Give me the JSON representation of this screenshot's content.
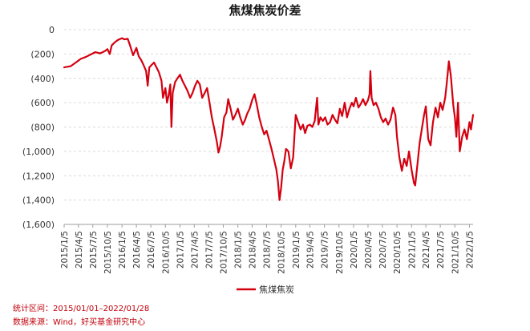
{
  "chart_data": {
    "type": "line",
    "title": "焦煤焦炭价差",
    "xlabel": "",
    "ylabel": "",
    "ylim": [
      -1600,
      0
    ],
    "yticks": [
      0,
      -200,
      -400,
      -600,
      -800,
      -1000,
      -1200,
      -1400,
      -1600
    ],
    "ytick_labels": [
      "0",
      "(200)",
      "(400)",
      "(600)",
      "(800)",
      "(1,000)",
      "(1,200)",
      "(1,400)",
      "(1,600)"
    ],
    "xtick_labels": [
      "2015/1/5",
      "2015/4/5",
      "2015/7/5",
      "2015/10/5",
      "2016/1/5",
      "2016/4/5",
      "2016/7/5",
      "2016/10/5",
      "2017/1/5",
      "2017/4/5",
      "2017/7/5",
      "2017/10/5",
      "2018/1/5",
      "2018/4/5",
      "2018/7/5",
      "2018/10/5",
      "2019/1/5",
      "2019/4/5",
      "2019/7/5",
      "2019/10/5",
      "2020/1/5",
      "2020/4/5",
      "2020/7/5",
      "2020/10/5",
      "2021/1/5",
      "2021/4/5",
      "2021/7/5",
      "2021/10/5",
      "2022/1/5"
    ],
    "grid": "horizontal-dashed",
    "legend": "bottom-center",
    "series": [
      {
        "name": "焦煤焦炭",
        "color": "#d40010",
        "points": [
          [
            "2015/01/05",
            -310
          ],
          [
            "2015/02/15",
            -300
          ],
          [
            "2015/03/20",
            -270
          ],
          [
            "2015/04/20",
            -240
          ],
          [
            "2015/05/20",
            -225
          ],
          [
            "2015/06/20",
            -205
          ],
          [
            "2015/07/20",
            -185
          ],
          [
            "2015/08/20",
            -195
          ],
          [
            "2015/09/20",
            -175
          ],
          [
            "2015/10/05",
            -160
          ],
          [
            "2015/10/20",
            -200
          ],
          [
            "2015/11/01",
            -130
          ],
          [
            "2015/11/20",
            -105
          ],
          [
            "2015/12/10",
            -85
          ],
          [
            "2016/01/05",
            -70
          ],
          [
            "2016/01/20",
            -80
          ],
          [
            "2016/02/10",
            -75
          ],
          [
            "2016/02/25",
            -130
          ],
          [
            "2016/03/15",
            -210
          ],
          [
            "2016/04/05",
            -150
          ],
          [
            "2016/04/20",
            -220
          ],
          [
            "2016/05/05",
            -250
          ],
          [
            "2016/05/20",
            -290
          ],
          [
            "2016/06/05",
            -340
          ],
          [
            "2016/06/15",
            -460
          ],
          [
            "2016/06/25",
            -310
          ],
          [
            "2016/07/10",
            -290
          ],
          [
            "2016/07/25",
            -270
          ],
          [
            "2016/08/10",
            -310
          ],
          [
            "2016/08/25",
            -350
          ],
          [
            "2016/09/10",
            -420
          ],
          [
            "2016/09/20",
            -560
          ],
          [
            "2016/10/05",
            -480
          ],
          [
            "2016/10/15",
            -600
          ],
          [
            "2016/10/25",
            -540
          ],
          [
            "2016/11/05",
            -450
          ],
          [
            "2016/11/12",
            -800
          ],
          [
            "2016/11/20",
            -520
          ],
          [
            "2016/12/05",
            -430
          ],
          [
            "2016/12/20",
            -400
          ],
          [
            "2017/01/05",
            -370
          ],
          [
            "2017/01/20",
            -420
          ],
          [
            "2017/02/05",
            -460
          ],
          [
            "2017/02/20",
            -500
          ],
          [
            "2017/03/10",
            -560
          ],
          [
            "2017/03/25",
            -520
          ],
          [
            "2017/04/10",
            -460
          ],
          [
            "2017/04/25",
            -420
          ],
          [
            "2017/05/10",
            -450
          ],
          [
            "2017/05/25",
            -560
          ],
          [
            "2017/06/10",
            -520
          ],
          [
            "2017/06/25",
            -480
          ],
          [
            "2017/07/10",
            -600
          ],
          [
            "2017/07/25",
            -720
          ],
          [
            "2017/08/10",
            -820
          ],
          [
            "2017/08/25",
            -920
          ],
          [
            "2017/09/05",
            -1010
          ],
          [
            "2017/09/15",
            -960
          ],
          [
            "2017/09/25",
            -880
          ],
          [
            "2017/10/10",
            -720
          ],
          [
            "2017/10/25",
            -680
          ],
          [
            "2017/11/05",
            -570
          ],
          [
            "2017/11/20",
            -650
          ],
          [
            "2017/12/05",
            -740
          ],
          [
            "2017/12/20",
            -700
          ],
          [
            "2018/01/05",
            -650
          ],
          [
            "2018/01/20",
            -720
          ],
          [
            "2018/02/05",
            -780
          ],
          [
            "2018/02/20",
            -740
          ],
          [
            "2018/03/05",
            -690
          ],
          [
            "2018/03/20",
            -650
          ],
          [
            "2018/04/05",
            -580
          ],
          [
            "2018/04/20",
            -530
          ],
          [
            "2018/05/05",
            -620
          ],
          [
            "2018/05/20",
            -720
          ],
          [
            "2018/06/05",
            -800
          ],
          [
            "2018/06/20",
            -860
          ],
          [
            "2018/07/05",
            -830
          ],
          [
            "2018/07/20",
            -900
          ],
          [
            "2018/08/05",
            -980
          ],
          [
            "2018/08/20",
            -1060
          ],
          [
            "2018/09/05",
            -1150
          ],
          [
            "2018/09/15",
            -1250
          ],
          [
            "2018/09/25",
            -1400
          ],
          [
            "2018/10/05",
            -1300
          ],
          [
            "2018/10/15",
            -1150
          ],
          [
            "2018/10/25",
            -1080
          ],
          [
            "2018/11/05",
            -980
          ],
          [
            "2018/11/20",
            -1000
          ],
          [
            "2018/12/05",
            -1140
          ],
          [
            "2018/12/20",
            -1050
          ],
          [
            "2019/01/05",
            -700
          ],
          [
            "2019/01/20",
            -760
          ],
          [
            "2019/02/05",
            -820
          ],
          [
            "2019/02/20",
            -780
          ],
          [
            "2019/03/05",
            -850
          ],
          [
            "2019/03/20",
            -790
          ],
          [
            "2019/04/05",
            -780
          ],
          [
            "2019/04/20",
            -800
          ],
          [
            "2019/05/05",
            -750
          ],
          [
            "2019/05/20",
            -560
          ],
          [
            "2019/05/28",
            -780
          ],
          [
            "2019/06/10",
            -720
          ],
          [
            "2019/06/25",
            -750
          ],
          [
            "2019/07/10",
            -720
          ],
          [
            "2019/07/25",
            -780
          ],
          [
            "2019/08/10",
            -760
          ],
          [
            "2019/08/25",
            -700
          ],
          [
            "2019/09/10",
            -740
          ],
          [
            "2019/09/25",
            -770
          ],
          [
            "2019/10/10",
            -650
          ],
          [
            "2019/10/25",
            -710
          ],
          [
            "2019/11/10",
            -600
          ],
          [
            "2019/11/25",
            -720
          ],
          [
            "2019/12/10",
            -650
          ],
          [
            "2019/12/25",
            -600
          ],
          [
            "2020/01/05",
            -630
          ],
          [
            "2020/01/20",
            -560
          ],
          [
            "2020/02/05",
            -640
          ],
          [
            "2020/02/20",
            -610
          ],
          [
            "2020/03/05",
            -570
          ],
          [
            "2020/03/20",
            -620
          ],
          [
            "2020/04/05",
            -580
          ],
          [
            "2020/04/15",
            -530
          ],
          [
            "2020/04/20",
            -340
          ],
          [
            "2020/04/28",
            -560
          ],
          [
            "2020/05/10",
            -620
          ],
          [
            "2020/05/25",
            -600
          ],
          [
            "2020/06/10",
            -650
          ],
          [
            "2020/06/25",
            -720
          ],
          [
            "2020/07/10",
            -760
          ],
          [
            "2020/07/25",
            -730
          ],
          [
            "2020/08/10",
            -780
          ],
          [
            "2020/08/25",
            -740
          ],
          [
            "2020/09/10",
            -640
          ],
          [
            "2020/09/25",
            -700
          ],
          [
            "2020/10/05",
            -880
          ],
          [
            "2020/10/20",
            -1050
          ],
          [
            "2020/11/05",
            -1160
          ],
          [
            "2020/11/20",
            -1060
          ],
          [
            "2020/12/05",
            -1120
          ],
          [
            "2020/12/20",
            -1000
          ],
          [
            "2021/01/05",
            -1150
          ],
          [
            "2021/01/20",
            -1260
          ],
          [
            "2021/01/28",
            -1280
          ],
          [
            "2021/02/10",
            -1120
          ],
          [
            "2021/02/25",
            -930
          ],
          [
            "2021/03/10",
            -820
          ],
          [
            "2021/03/25",
            -700
          ],
          [
            "2021/04/05",
            -630
          ],
          [
            "2021/04/20",
            -900
          ],
          [
            "2021/05/05",
            -950
          ],
          [
            "2021/05/20",
            -760
          ],
          [
            "2021/06/05",
            -640
          ],
          [
            "2021/06/20",
            -720
          ],
          [
            "2021/07/05",
            -600
          ],
          [
            "2021/07/20",
            -660
          ],
          [
            "2021/08/05",
            -560
          ],
          [
            "2021/08/15",
            -440
          ],
          [
            "2021/08/28",
            -260
          ],
          [
            "2021/09/10",
            -380
          ],
          [
            "2021/09/25",
            -620
          ],
          [
            "2021/10/05",
            -720
          ],
          [
            "2021/10/15",
            -880
          ],
          [
            "2021/10/25",
            -600
          ],
          [
            "2021/11/05",
            -1000
          ],
          [
            "2021/11/20",
            -880
          ],
          [
            "2021/12/05",
            -820
          ],
          [
            "2021/12/20",
            -900
          ],
          [
            "2022/01/05",
            -760
          ],
          [
            "2022/01/15",
            -820
          ],
          [
            "2022/01/28",
            -700
          ]
        ]
      }
    ]
  },
  "footer": {
    "range": "统计区间：2015/01/01–2022/01/28",
    "source": "数据来源：Wind，好买基金研究中心"
  }
}
